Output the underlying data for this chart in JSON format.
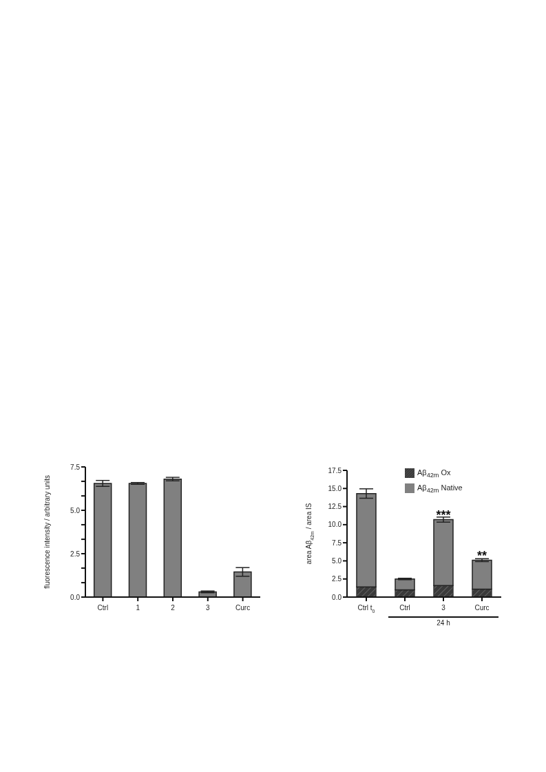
{
  "chart_data": [
    {
      "type": "bar",
      "ylabel": "fluorescence intensity / arbitrary units",
      "categories": [
        "Ctrl",
        "1",
        "2",
        "3",
        "Curc"
      ],
      "values": [
        6.55,
        6.55,
        6.8,
        0.3,
        1.45
      ],
      "errors": [
        0.17,
        0.05,
        0.1,
        0.05,
        0.25
      ],
      "color": "#808080",
      "ylim": [
        0,
        7.5
      ],
      "yticks": [
        {
          "value": 0,
          "label": "0.0"
        },
        {
          "value": 0.83,
          "label": null
        },
        {
          "value": 1.67,
          "label": null
        },
        2.5,
        {
          "value": 3.33,
          "label": null
        },
        {
          "value": 4.17,
          "label": null
        },
        {
          "value": 5,
          "label": "5.0"
        },
        {
          "value": 5.83,
          "label": null
        },
        {
          "value": 6.67,
          "label": null
        },
        7.5
      ]
    },
    {
      "type": "bar",
      "ylabel": "area Aβ$_{42m}$ / area IS",
      "categories": [
        "Ctrl t$_{0}$",
        "Ctrl",
        "3",
        "Curc"
      ],
      "stacked": true,
      "legend": "top right",
      "series": [
        {
          "name": "Aβ$_{42m}$ Ox",
          "color": "#3a3a3a",
          "values": [
            1.4,
            1.0,
            1.6,
            1.1
          ]
        },
        {
          "name": "Aβ$_{42m}$ Native",
          "color": "#808080",
          "values": [
            12.9,
            1.5,
            9.1,
            4.0
          ],
          "errors": [
            0.65,
            0.1,
            0.35,
            0.2
          ]
        }
      ],
      "ylim": [
        0,
        17.5
      ],
      "yticks": [
        {
          "value": 0,
          "label": "0.0"
        },
        2.5,
        {
          "value": 5,
          "label": "5.0"
        },
        7.5,
        {
          "value": 10,
          "label": "10.0"
        },
        12.5,
        {
          "value": 15,
          "label": "15.0"
        },
        17.5
      ],
      "annotations": [
        {
          "text": "***",
          "x": "3",
          "y": 11.4
        },
        {
          "text": "**",
          "x": "Curc",
          "y": 5.7
        },
        "24 h"
      ]
    }
  ]
}
